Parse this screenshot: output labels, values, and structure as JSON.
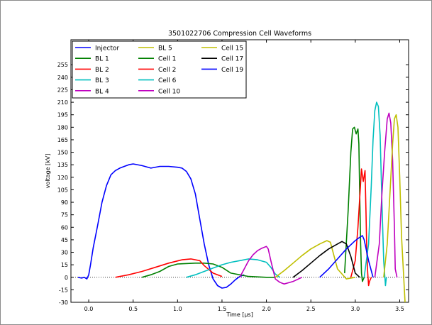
{
  "chart_data": {
    "type": "line",
    "title": "3501022706 Compression Cell Waveforms",
    "xlabel": "Time [μs]",
    "ylabel": "voltage [kV]",
    "xlim": [
      -0.2,
      3.6
    ],
    "ylim": [
      -30,
      285
    ],
    "xticks": [
      0.0,
      0.5,
      1.0,
      1.5,
      2.0,
      2.5,
      3.0,
      3.5
    ],
    "xtick_labels": [
      "0.0",
      "0.5",
      "1.0",
      "1.5",
      "2.0",
      "2.5",
      "3.0",
      "3.5"
    ],
    "yticks": [
      -30,
      -15,
      0,
      15,
      30,
      45,
      60,
      75,
      90,
      105,
      120,
      135,
      150,
      165,
      180,
      195,
      210,
      225,
      240,
      255
    ],
    "ytick_labels": [
      "-30",
      "-15",
      "0",
      "15",
      "30",
      "45",
      "60",
      "75",
      "90",
      "105",
      "120",
      "135",
      "150",
      "165",
      "180",
      "195",
      "210",
      "225",
      "240",
      "255"
    ],
    "grid": false,
    "legend_position": "top-left",
    "legend_columns": 3,
    "reference_line": {
      "y": 0,
      "style": "dotted"
    },
    "series": [
      {
        "name": "Injector",
        "color": "#0000ff",
        "x": [
          -0.12,
          -0.08,
          -0.05,
          -0.02,
          0.0,
          0.02,
          0.05,
          0.1,
          0.15,
          0.2,
          0.25,
          0.3,
          0.35,
          0.4,
          0.45,
          0.5,
          0.6,
          0.7,
          0.8,
          0.9,
          1.0,
          1.05,
          1.1,
          1.15,
          1.2,
          1.25,
          1.3,
          1.35,
          1.4,
          1.45,
          1.5,
          1.55,
          1.6,
          1.65,
          1.7,
          1.75
        ],
        "y": [
          0,
          -1,
          0,
          -2,
          3,
          15,
          35,
          62,
          90,
          110,
          123,
          128,
          131,
          133,
          135,
          136,
          134,
          131,
          133,
          133,
          132,
          131,
          127,
          118,
          100,
          70,
          40,
          15,
          -2,
          -10,
          -13,
          -12,
          -8,
          -3,
          1,
          3
        ]
      },
      {
        "name": "BL 1",
        "color": "#008000",
        "x": [
          0.6,
          0.7,
          0.8,
          0.9,
          1.0,
          1.2,
          1.3,
          1.4,
          1.5,
          1.6,
          1.8,
          2.0,
          2.1
        ],
        "y": [
          0,
          3,
          7,
          13,
          16,
          17,
          17,
          16,
          12,
          5,
          1,
          0,
          0
        ]
      },
      {
        "name": "BL 2",
        "color": "#ff0000",
        "x": [
          0.3,
          0.45,
          0.6,
          0.75,
          0.9,
          1.05,
          1.15,
          1.25,
          1.3,
          1.4,
          1.5
        ],
        "y": [
          0,
          3,
          7,
          12,
          17,
          21,
          22,
          20,
          14,
          5,
          1
        ]
      },
      {
        "name": "BL 3",
        "color": "#00bfbf",
        "x": [
          1.1,
          1.2,
          1.3,
          1.4,
          1.5,
          1.6,
          1.7,
          1.8,
          1.9,
          2.0,
          2.05,
          2.1,
          2.15
        ],
        "y": [
          0,
          3,
          7,
          11,
          15,
          18,
          20,
          22,
          21,
          18,
          12,
          4,
          0
        ]
      },
      {
        "name": "BL 4",
        "color": "#bf00bf",
        "x": [
          1.7,
          1.75,
          1.8,
          1.85,
          1.9,
          1.95,
          2.0,
          2.02,
          2.05,
          2.1,
          2.15,
          2.2,
          2.3,
          2.4
        ],
        "y": [
          0,
          10,
          20,
          27,
          32,
          35,
          37,
          34,
          20,
          -2,
          -6,
          -8,
          -5,
          0
        ]
      },
      {
        "name": "BL 5",
        "color": "#bfbf00",
        "x": [
          2.1,
          2.2,
          2.3,
          2.4,
          2.5,
          2.6,
          2.68,
          2.72,
          2.75,
          2.8,
          2.9,
          3.0
        ],
        "y": [
          0,
          8,
          17,
          26,
          34,
          40,
          44,
          42,
          30,
          10,
          -2,
          0
        ]
      },
      {
        "name": "Cell 1",
        "color": "#008000",
        "x": [
          2.88,
          2.92,
          2.95,
          2.97,
          2.99,
          3.01,
          3.03,
          3.04,
          3.05,
          3.06,
          3.07,
          3.08,
          3.1
        ],
        "y": [
          5,
          80,
          150,
          178,
          180,
          172,
          178,
          160,
          100,
          40,
          5,
          -5,
          0
        ]
      },
      {
        "name": "Cell 2",
        "color": "#ff0000",
        "x": [
          2.95,
          3.0,
          3.03,
          3.05,
          3.07,
          3.09,
          3.11,
          3.12,
          3.13,
          3.14,
          3.15,
          3.16,
          3.18
        ],
        "y": [
          0,
          20,
          60,
          95,
          130,
          115,
          128,
          80,
          30,
          5,
          -10,
          -5,
          0
        ]
      },
      {
        "name": "Cell 6",
        "color": "#00bfbf",
        "x": [
          3.1,
          3.15,
          3.18,
          3.2,
          3.22,
          3.24,
          3.26,
          3.28,
          3.3,
          3.32,
          3.34,
          3.35
        ],
        "y": [
          0,
          40,
          110,
          165,
          200,
          210,
          205,
          170,
          90,
          20,
          -10,
          0
        ]
      },
      {
        "name": "Cell 10",
        "color": "#bf00bf",
        "x": [
          3.22,
          3.27,
          3.3,
          3.33,
          3.36,
          3.38,
          3.4,
          3.42,
          3.44,
          3.45,
          3.47
        ],
        "y": [
          0,
          40,
          100,
          150,
          190,
          197,
          185,
          140,
          60,
          10,
          0
        ]
      },
      {
        "name": "Cell 15",
        "color": "#bfbf00",
        "x": [
          3.32,
          3.36,
          3.39,
          3.42,
          3.44,
          3.46,
          3.48,
          3.5,
          3.52,
          3.54,
          3.56
        ],
        "y": [
          0,
          40,
          100,
          160,
          190,
          195,
          180,
          120,
          50,
          10,
          -30
        ]
      },
      {
        "name": "Cell 17",
        "color": "#000000",
        "x": [
          2.3,
          2.4,
          2.5,
          2.6,
          2.7,
          2.8,
          2.85,
          2.9,
          2.95,
          3.0,
          3.05
        ],
        "y": [
          0,
          8,
          17,
          26,
          34,
          40,
          43,
          40,
          25,
          5,
          0
        ]
      },
      {
        "name": "Cell 19",
        "color": "#0000ff",
        "x": [
          2.6,
          2.7,
          2.8,
          2.9,
          3.0,
          3.05,
          3.08,
          3.1,
          3.15,
          3.2
        ],
        "y": [
          0,
          10,
          22,
          34,
          44,
          48,
          50,
          45,
          20,
          0
        ]
      }
    ]
  }
}
